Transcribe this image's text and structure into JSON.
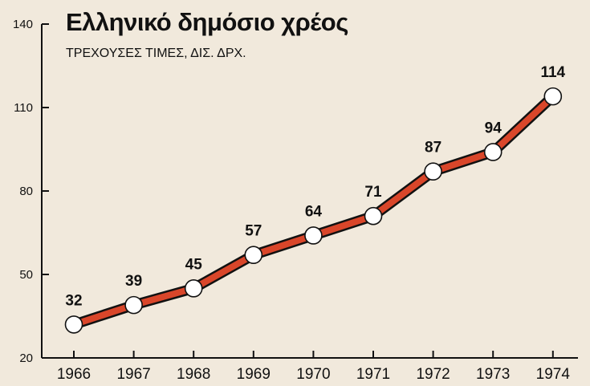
{
  "colors": {
    "background": "#f1e9dc",
    "line": "#d9462a",
    "line_outline": "#111111",
    "marker_fill": "#ffffff",
    "axis": "#111111"
  },
  "chart_data": {
    "type": "line",
    "title": "Ελληνικό δημόσιο χρέος",
    "subtitle": "ΤΡΕΧΟΥΣΕΣ ΤΙΜΕΣ, ΔΙΣ. ΔΡΧ.",
    "xlabel": "",
    "ylabel": "",
    "x": [
      "1966",
      "1967",
      "1968",
      "1969",
      "1970",
      "1971",
      "1972",
      "1973",
      "1974"
    ],
    "series": [
      {
        "values": [
          32,
          39,
          45,
          57,
          64,
          71,
          87,
          94,
          114
        ]
      }
    ],
    "data_labels": [
      "32",
      "39",
      "45",
      "57",
      "64",
      "71",
      "87",
      "94",
      "114"
    ],
    "ylim": [
      20,
      140
    ],
    "yticks": [
      20,
      50,
      80,
      110,
      140
    ],
    "ytick_labels": [
      "20",
      "50",
      "80",
      "110",
      "140"
    ],
    "grid": false,
    "legend": "none"
  }
}
